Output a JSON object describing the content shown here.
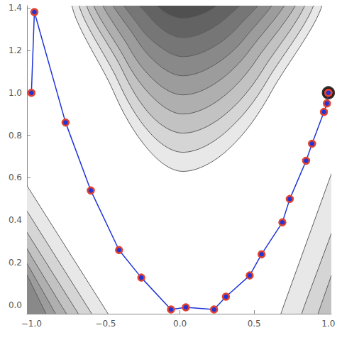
{
  "chart_data": {
    "type": "line",
    "xlim": [
      -1.03,
      1.02
    ],
    "ylim": [
      -0.04,
      1.41
    ],
    "xticks": [
      {
        "value": -1,
        "label": "−1.0"
      },
      {
        "value": -0.5,
        "label": "−0.5"
      },
      {
        "value": 0,
        "label": "0.0"
      },
      {
        "value": 0.5,
        "label": "0.5"
      },
      {
        "value": 1,
        "label": "1.0"
      }
    ],
    "yticks": [
      {
        "value": 0,
        "label": "0.0"
      },
      {
        "value": 0.2,
        "label": "0.2"
      },
      {
        "value": 0.4,
        "label": "0.4"
      },
      {
        "value": 0.6,
        "label": "0.6"
      },
      {
        "value": 0.8,
        "label": "0.8"
      },
      {
        "value": 1,
        "label": "1.0"
      },
      {
        "value": 1.2,
        "label": "1.2"
      },
      {
        "value": 1.4,
        "label": "1.4"
      }
    ],
    "grid": false,
    "series": [
      {
        "type": "line",
        "color": "#1f35d8",
        "marker": "circle",
        "line_style": "solid",
        "x": [
          -1.0,
          -0.98,
          -0.77,
          -0.6,
          -0.41,
          -0.26,
          -0.06,
          0.04,
          0.23,
          0.31,
          0.47,
          0.55,
          0.69,
          0.74,
          0.85,
          0.89,
          0.97,
          0.99,
          1.0
        ],
        "values": [
          1.0,
          1.38,
          0.86,
          0.54,
          0.26,
          0.13,
          -0.02,
          -0.01,
          -0.02,
          0.04,
          0.14,
          0.24,
          0.39,
          0.5,
          0.68,
          0.76,
          0.91,
          0.95,
          1.0
        ]
      },
      {
        "type": "scatter",
        "color": "#000000",
        "marker": "ring",
        "x": [
          1.0
        ],
        "values": [
          1.0
        ]
      }
    ],
    "contours": [
      {
        "level": 1,
        "points": [
          [
            -0.69,
            1.5
          ],
          [
            -0.45,
            1.01
          ],
          [
            -0.21,
            0.73
          ],
          [
            0.02,
            0.63
          ],
          [
            0.32,
            0.73
          ],
          [
            0.62,
            1.01
          ],
          [
            0.93,
            1.5
          ]
        ]
      },
      {
        "level": 2,
        "points": [
          [
            -0.65,
            1.5
          ],
          [
            -0.42,
            1.06
          ],
          [
            -0.2,
            0.81
          ],
          [
            0.02,
            0.72
          ],
          [
            0.3,
            0.81
          ],
          [
            0.59,
            1.06
          ],
          [
            0.88,
            1.5
          ]
        ]
      },
      {
        "level": 3,
        "points": [
          [
            -0.61,
            1.5
          ],
          [
            -0.39,
            1.11
          ],
          [
            -0.19,
            0.89
          ],
          [
            0.02,
            0.81
          ],
          [
            0.29,
            0.89
          ],
          [
            0.56,
            1.11
          ],
          [
            0.83,
            1.5
          ]
        ]
      },
      {
        "level": 4,
        "points": [
          [
            -0.57,
            1.5
          ],
          [
            -0.37,
            1.16
          ],
          [
            -0.17,
            0.97
          ],
          [
            0.02,
            0.9
          ],
          [
            0.27,
            0.97
          ],
          [
            0.52,
            1.16
          ],
          [
            0.78,
            1.5
          ]
        ]
      },
      {
        "level": 5,
        "points": [
          [
            -0.52,
            1.5
          ],
          [
            -0.34,
            1.21
          ],
          [
            -0.16,
            1.05
          ],
          [
            0.02,
            0.99
          ],
          [
            0.25,
            1.05
          ],
          [
            0.48,
            1.21
          ],
          [
            0.72,
            1.5
          ]
        ]
      },
      {
        "level": 6,
        "points": [
          [
            -0.47,
            1.5
          ],
          [
            -0.3,
            1.26
          ],
          [
            -0.14,
            1.13
          ],
          [
            0.02,
            1.08
          ],
          [
            0.23,
            1.13
          ],
          [
            0.44,
            1.26
          ],
          [
            0.65,
            1.5
          ]
        ]
      },
      {
        "level": 7,
        "points": [
          [
            -0.41,
            1.5
          ],
          [
            -0.27,
            1.31
          ],
          [
            -0.12,
            1.21
          ],
          [
            0.02,
            1.17
          ],
          [
            0.21,
            1.21
          ],
          [
            0.39,
            1.31
          ],
          [
            0.58,
            1.5
          ]
        ]
      },
      {
        "level": 8,
        "points": [
          [
            -0.35,
            1.5
          ],
          [
            -0.22,
            1.37
          ],
          [
            -0.1,
            1.29
          ],
          [
            0.02,
            1.26
          ],
          [
            0.18,
            1.29
          ],
          [
            0.34,
            1.37
          ],
          [
            0.5,
            1.5
          ]
        ]
      },
      {
        "level": 9,
        "points": [
          [
            -0.27,
            1.5
          ],
          [
            -0.17,
            1.42
          ],
          [
            -0.08,
            1.37
          ],
          [
            0.02,
            1.35
          ],
          [
            0.15,
            1.37
          ],
          [
            0.27,
            1.42
          ],
          [
            0.4,
            1.5
          ]
        ]
      },
      {
        "level": 1,
        "points": [
          [
            -0.43,
            -0.1
          ],
          [
            -0.52,
            0
          ],
          [
            -1,
            0.53
          ],
          [
            -1.1,
            0.64
          ],
          [
            -1.1,
            -0.1
          ]
        ]
      },
      {
        "level": 2,
        "points": [
          [
            -0.54,
            -0.1
          ],
          [
            -0.63,
            0
          ],
          [
            -1,
            0.41
          ],
          [
            -1.1,
            0.52
          ],
          [
            -1.1,
            -0.1
          ]
        ]
      },
      {
        "level": 3,
        "points": [
          [
            -0.63,
            -0.1
          ],
          [
            -0.72,
            0
          ],
          [
            -1,
            0.31
          ],
          [
            -1.1,
            0.42
          ],
          [
            -1.1,
            -0.1
          ]
        ]
      },
      {
        "level": 4,
        "points": [
          [
            -0.71,
            -0.1
          ],
          [
            -0.8,
            0
          ],
          [
            -1,
            0.23
          ],
          [
            -1.1,
            0.35
          ],
          [
            -1.1,
            -0.1
          ]
        ]
      },
      {
        "level": 5,
        "points": [
          [
            -0.79,
            -0.1
          ],
          [
            -0.87,
            0
          ],
          [
            -1,
            0.16
          ],
          [
            -1.1,
            0.28
          ],
          [
            -1.1,
            -0.1
          ]
        ]
      },
      {
        "level": 6,
        "points": [
          [
            -0.86,
            -0.1
          ],
          [
            -0.93,
            0
          ],
          [
            -1,
            0.1
          ],
          [
            -1.1,
            0.24
          ],
          [
            -1.1,
            -0.1
          ]
        ]
      },
      {
        "level": 1,
        "points": [
          [
            0.65,
            -0.1
          ],
          [
            0.7,
            0
          ],
          [
            1,
            0.58
          ],
          [
            1.1,
            0.77
          ],
          [
            1.1,
            -0.1
          ]
        ]
      },
      {
        "level": 2,
        "points": [
          [
            0.79,
            -0.1
          ],
          [
            0.84,
            0
          ],
          [
            1,
            0.3
          ],
          [
            1.1,
            0.49
          ],
          [
            1.1,
            -0.1
          ]
        ]
      },
      {
        "level": 3,
        "points": [
          [
            0.9,
            -0.1
          ],
          [
            0.95,
            0
          ],
          [
            1,
            0.1
          ],
          [
            1.1,
            0.3
          ],
          [
            1.1,
            -0.1
          ]
        ]
      }
    ]
  }
}
